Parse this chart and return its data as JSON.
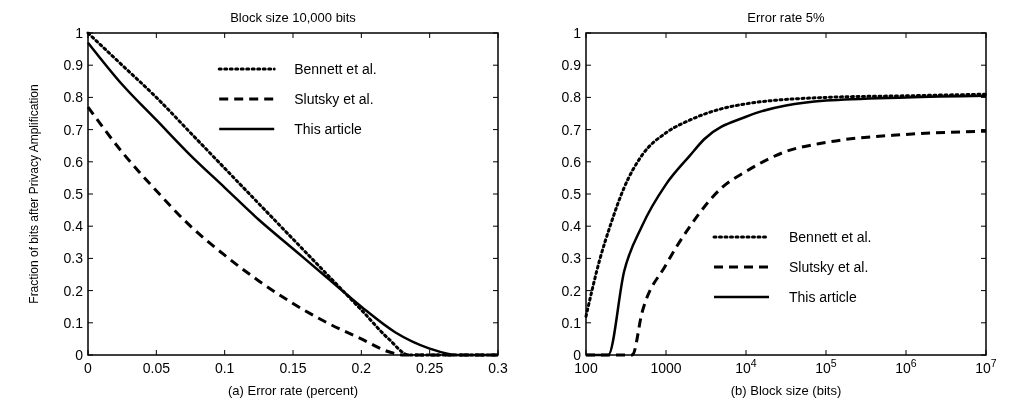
{
  "chart_data": [
    {
      "type": "line",
      "title": "Block size 10,000 bits",
      "xlabel": "(a) Error rate (percent)",
      "ylabel": "Fraction of bits after Privacy Amplification",
      "xlim": [
        0,
        0.3
      ],
      "ylim": [
        0,
        1
      ],
      "xticks": [
        0,
        0.05,
        0.1,
        0.15,
        0.2,
        0.25,
        0.3
      ],
      "yticks": [
        0,
        0.1,
        0.2,
        0.3,
        0.4,
        0.5,
        0.6,
        0.7,
        0.8,
        0.9,
        1
      ],
      "legend": "top right",
      "grid": false,
      "series": [
        {
          "name": "Bennett et al.",
          "color": "#000000",
          "line_style": "dotted",
          "x": [
            0,
            0.025,
            0.05,
            0.075,
            0.1,
            0.125,
            0.15,
            0.175,
            0.2,
            0.22,
            0.235,
            0.3
          ],
          "values": [
            1,
            0.9,
            0.8,
            0.69,
            0.58,
            0.47,
            0.36,
            0.25,
            0.14,
            0.05,
            0,
            0
          ]
        },
        {
          "name": "Slutsky et al.",
          "color": "#000000",
          "line_style": "dashed",
          "x": [
            0,
            0.025,
            0.05,
            0.075,
            0.1,
            0.125,
            0.15,
            0.175,
            0.2,
            0.22,
            0.23,
            0.3
          ],
          "values": [
            0.77,
            0.63,
            0.51,
            0.4,
            0.31,
            0.23,
            0.16,
            0.1,
            0.05,
            0.01,
            0,
            0
          ]
        },
        {
          "name": "This article",
          "color": "#000000",
          "line_style": "solid",
          "x": [
            0,
            0.025,
            0.05,
            0.075,
            0.1,
            0.125,
            0.15,
            0.175,
            0.2,
            0.225,
            0.25,
            0.27,
            0.3
          ],
          "values": [
            0.97,
            0.84,
            0.73,
            0.62,
            0.52,
            0.42,
            0.33,
            0.24,
            0.15,
            0.07,
            0.02,
            0,
            0
          ]
        }
      ]
    },
    {
      "type": "line",
      "title": "Error rate 5%",
      "xlabel": "(b) Block size (bits)",
      "log": "x",
      "xlim": [
        100,
        10000000
      ],
      "ylim": [
        0,
        1
      ],
      "xticks": [
        100,
        1000,
        {
          "value": 10000,
          "label": "10$^{4}$"
        },
        {
          "value": 100000,
          "label": "10$^{5}$"
        },
        {
          "value": 1000000,
          "label": "10$^{6}$"
        },
        {
          "value": 10000000,
          "label": "10$^{7}$"
        }
      ],
      "yticks": [
        0,
        0.1,
        0.2,
        0.3,
        0.4,
        0.5,
        0.6,
        0.7,
        0.8,
        0.9,
        1
      ],
      "legend": "bottom right",
      "grid": false,
      "series": [
        {
          "name": "Bennett et al.",
          "color": "#000000",
          "line_style": "dotted",
          "x": [
            100,
            150,
            200,
            300,
            500,
            1000,
            2000,
            5000,
            10000,
            100000,
            1000000,
            10000000
          ],
          "values": [
            0.12,
            0.3,
            0.4,
            0.52,
            0.62,
            0.69,
            0.73,
            0.765,
            0.78,
            0.8,
            0.805,
            0.81
          ]
        },
        {
          "name": "Slutsky et al.",
          "color": "#000000",
          "line_style": "dashed",
          "x": [
            100,
            380,
            500,
            1000,
            2000,
            5000,
            10000,
            30000,
            100000,
            1000000,
            10000000
          ],
          "values": [
            0,
            0,
            0.13,
            0.28,
            0.4,
            0.52,
            0.57,
            0.63,
            0.66,
            0.685,
            0.695
          ]
        },
        {
          "name": "This article",
          "color": "#000000",
          "line_style": "solid",
          "x": [
            100,
            190,
            300,
            500,
            1000,
            2000,
            3000,
            10000,
            100000,
            1000000,
            10000000
          ],
          "values": [
            0,
            0,
            0.26,
            0.4,
            0.53,
            0.62,
            0.67,
            0.74,
            0.79,
            0.8,
            0.805
          ]
        }
      ]
    }
  ]
}
